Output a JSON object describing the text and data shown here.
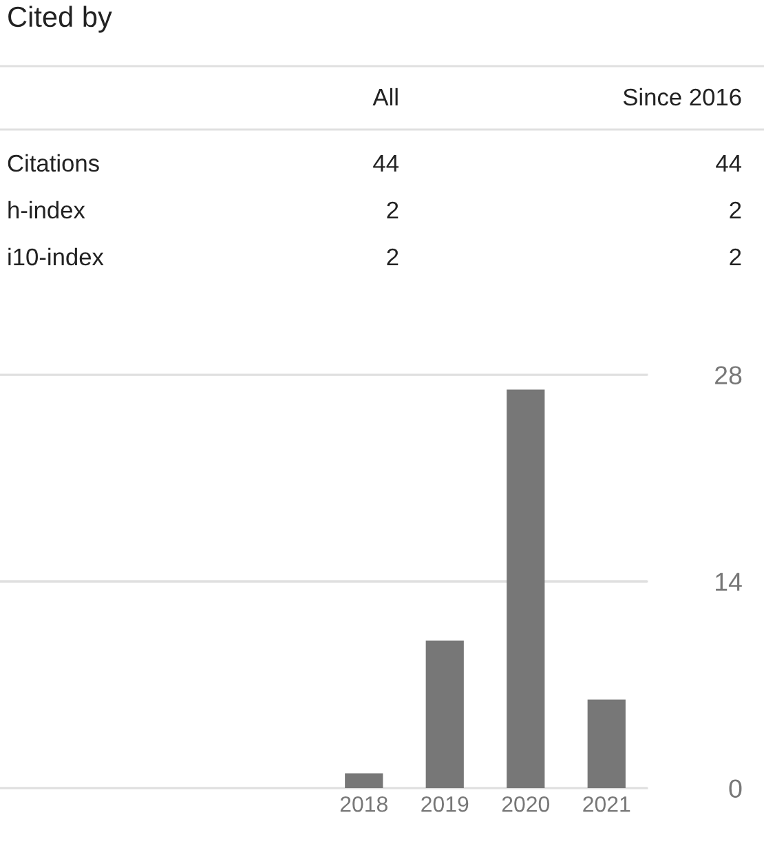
{
  "chart_data": [
    {
      "type": "other",
      "title": "Cited by",
      "annotations": [
        "All",
        "Since 2016",
        "Citations",
        "44",
        "44",
        "h-index",
        "2",
        "2",
        "i10-index",
        "2",
        "2"
      ]
    },
    {
      "type": "bar",
      "categories": [
        null,
        null,
        null,
        null,
        "2018",
        "2019",
        "2020",
        "2021"
      ],
      "values": [
        null,
        null,
        null,
        null,
        1,
        10,
        27,
        6
      ],
      "color": "#777777",
      "ylim": [
        0,
        28
      ],
      "yticks": [
        0,
        14,
        28
      ],
      "grid": "y"
    }
  ]
}
